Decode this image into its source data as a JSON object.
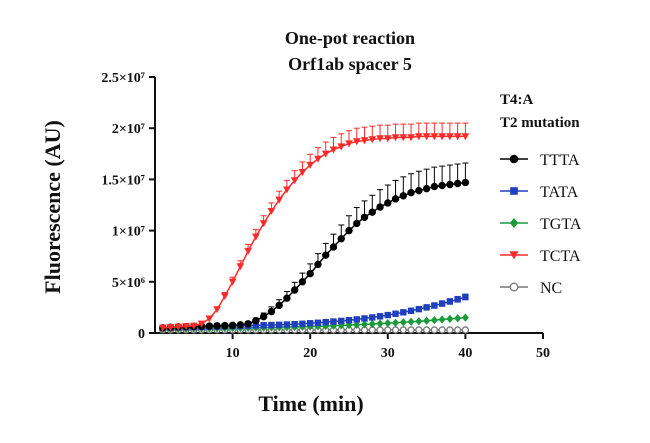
{
  "chart_data": {
    "type": "line",
    "title": [
      "One-pot reaction",
      "Orf1ab spacer 5"
    ],
    "xlabel": "Time (min)",
    "ylabel": "Fluorescence (AU)",
    "xlim": [
      0,
      50
    ],
    "ylim": [
      0,
      25000000
    ],
    "xticks": [
      10,
      20,
      30,
      40,
      50
    ],
    "xtick_labels": [
      "10",
      "20",
      "30",
      "40",
      "50"
    ],
    "yticks": [
      0,
      5000000,
      10000000,
      15000000,
      20000000,
      25000000
    ],
    "ytick_labels": [
      "0",
      "5×10⁶",
      "1×10⁷",
      "1.5×10⁷",
      "2×10⁷",
      "2.5×10⁷"
    ],
    "legend_title": [
      "T4:A",
      "T2 mutation"
    ],
    "legend_position": "right",
    "grid": false,
    "x": [
      1,
      2,
      3,
      4,
      5,
      6,
      7,
      8,
      9,
      10,
      11,
      12,
      13,
      14,
      15,
      16,
      17,
      18,
      19,
      20,
      21,
      22,
      23,
      24,
      25,
      26,
      27,
      28,
      29,
      30,
      31,
      32,
      33,
      34,
      35,
      36,
      37,
      38,
      39,
      40
    ],
    "series": [
      {
        "name": "TTTA",
        "color": "#000000",
        "marker": "circle-filled",
        "values": [
          500000,
          550000,
          600000,
          620000,
          640000,
          660000,
          680000,
          700000,
          720000,
          750000,
          800000,
          900000,
          1200000,
          1600000,
          2100000,
          2700000,
          3400000,
          4200000,
          5000000,
          5800000,
          6700000,
          7600000,
          8400000,
          9200000,
          10000000,
          10700000,
          11300000,
          11800000,
          12300000,
          12700000,
          13100000,
          13400000,
          13700000,
          13900000,
          14100000,
          14300000,
          14400000,
          14500000,
          14600000,
          14700000
        ],
        "error_up": [
          50000,
          50000,
          50000,
          50000,
          50000,
          50000,
          50000,
          50000,
          50000,
          50000,
          80000,
          150000,
          250000,
          350000,
          450000,
          550000,
          650000,
          750000,
          850000,
          950000,
          1050000,
          1150000,
          1250000,
          1350000,
          1450000,
          1550000,
          1600000,
          1650000,
          1700000,
          1750000,
          1800000,
          1850000,
          1850000,
          1900000,
          1900000,
          1900000,
          1900000,
          1900000,
          1900000,
          1900000
        ]
      },
      {
        "name": "TATA",
        "color": "#1f3fbf",
        "marker": "square-filled",
        "values": [
          500000,
          520000,
          540000,
          560000,
          580000,
          600000,
          620000,
          640000,
          660000,
          680000,
          700000,
          720000,
          740000,
          760000,
          780000,
          800000,
          830000,
          860000,
          900000,
          950000,
          1000000,
          1060000,
          1120000,
          1180000,
          1250000,
          1330000,
          1420000,
          1520000,
          1630000,
          1750000,
          1880000,
          2020000,
          2170000,
          2330000,
          2500000,
          2680000,
          2870000,
          3070000,
          3280000,
          3500000
        ],
        "error_up": [
          30000,
          30000,
          30000,
          30000,
          30000,
          30000,
          30000,
          30000,
          30000,
          30000,
          30000,
          30000,
          30000,
          40000,
          50000,
          60000,
          70000,
          80000,
          90000,
          100000,
          110000,
          120000,
          130000,
          140000,
          150000,
          160000,
          170000,
          180000,
          190000,
          200000,
          210000,
          220000,
          230000,
          240000,
          250000,
          260000,
          270000,
          280000,
          290000,
          300000
        ]
      },
      {
        "name": "TGTA",
        "color": "#1a9a3a",
        "marker": "diamond-filled",
        "values": [
          400000,
          410000,
          420000,
          430000,
          440000,
          450000,
          460000,
          470000,
          480000,
          490000,
          500000,
          510000,
          520000,
          530000,
          540000,
          550000,
          570000,
          590000,
          610000,
          630000,
          650000,
          680000,
          710000,
          740000,
          770000,
          800000,
          840000,
          880000,
          920000,
          960000,
          1000000,
          1050000,
          1100000,
          1150000,
          1200000,
          1260000,
          1320000,
          1380000,
          1440000,
          1500000
        ],
        "error_up": [
          20000,
          20000,
          20000,
          20000,
          20000,
          20000,
          20000,
          20000,
          20000,
          20000,
          20000,
          20000,
          20000,
          20000,
          20000,
          20000,
          20000,
          20000,
          20000,
          20000,
          20000,
          20000,
          20000,
          20000,
          20000,
          20000,
          20000,
          20000,
          20000,
          20000,
          20000,
          20000,
          20000,
          20000,
          20000,
          20000,
          20000,
          20000,
          20000,
          20000
        ]
      },
      {
        "name": "TCTA",
        "color": "#ff2a2a",
        "marker": "triangle-down-filled",
        "values": [
          500000,
          550000,
          600000,
          650000,
          700000,
          900000,
          1400000,
          2300000,
          3600000,
          5000000,
          6500000,
          8000000,
          9400000,
          10700000,
          11900000,
          13000000,
          14000000,
          14900000,
          15700000,
          16400000,
          17000000,
          17500000,
          17900000,
          18200000,
          18500000,
          18700000,
          18800000,
          18900000,
          19000000,
          19000000,
          19100000,
          19100000,
          19100000,
          19200000,
          19200000,
          19200000,
          19200000,
          19200000,
          19200000,
          19200000
        ],
        "error_up": [
          40000,
          40000,
          40000,
          40000,
          50000,
          80000,
          150000,
          250000,
          350000,
          450000,
          550000,
          650000,
          700000,
          750000,
          800000,
          850000,
          900000,
          950000,
          1000000,
          1050000,
          1100000,
          1150000,
          1200000,
          1250000,
          1250000,
          1300000,
          1300000,
          1300000,
          1300000,
          1300000,
          1300000,
          1300000,
          1300000,
          1300000,
          1300000,
          1300000,
          1300000,
          1300000,
          1300000,
          1300000
        ]
      },
      {
        "name": "NC",
        "color": "#777777",
        "marker": "circle-open",
        "values": [
          300000,
          300000,
          300000,
          300000,
          300000,
          300000,
          300000,
          300000,
          300000,
          300000,
          300000,
          300000,
          300000,
          300000,
          300000,
          300000,
          300000,
          300000,
          300000,
          300000,
          300000,
          300000,
          300000,
          300000,
          300000,
          300000,
          300000,
          300000,
          300000,
          300000,
          300000,
          300000,
          300000,
          300000,
          300000,
          300000,
          300000,
          300000,
          300000,
          300000
        ],
        "error_up": [
          10000,
          10000,
          10000,
          10000,
          10000,
          10000,
          10000,
          10000,
          10000,
          10000,
          10000,
          10000,
          10000,
          10000,
          10000,
          10000,
          10000,
          10000,
          10000,
          10000,
          10000,
          10000,
          10000,
          10000,
          10000,
          10000,
          10000,
          10000,
          10000,
          10000,
          10000,
          10000,
          10000,
          10000,
          10000,
          10000,
          10000,
          10000,
          10000,
          10000
        ]
      }
    ]
  }
}
